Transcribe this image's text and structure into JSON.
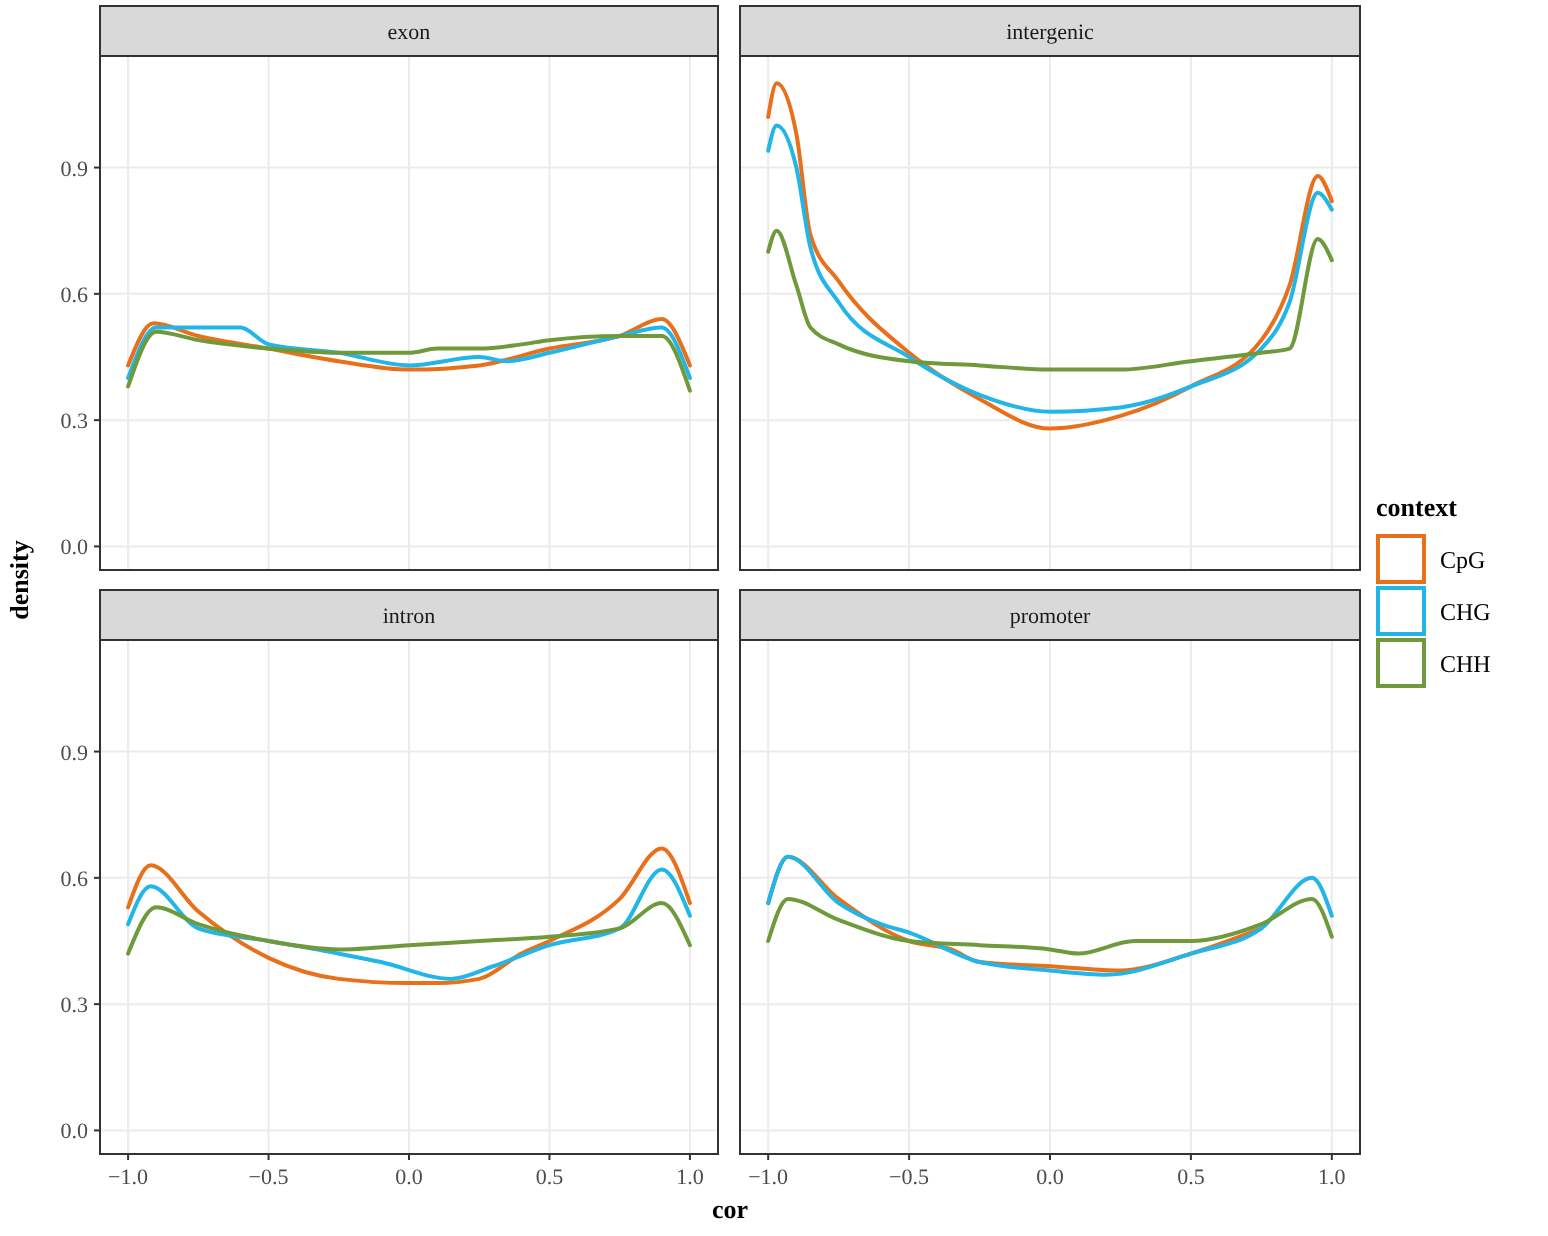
{
  "chart_data": [
    {
      "type": "line",
      "title": "exon",
      "xlabel": "cor",
      "ylabel": "density",
      "legend_title": "context",
      "legend": "right",
      "grid": true,
      "tick_labels": "y",
      "xlim": [
        -1.1,
        1.1
      ],
      "ylim": [
        -0.056,
        1.165
      ],
      "xticks": [
        -1,
        -0.5,
        0,
        0.5,
        1
      ],
      "yticks": [
        {
          "value": 0,
          "label": "0.0"
        },
        0.3,
        0.6,
        0.9
      ],
      "series": [
        {
          "name": "CpG",
          "color": "#e8701a",
          "x": [
            -1,
            -0.91,
            -0.75,
            -0.5,
            -0.25,
            0,
            0.25,
            0.5,
            0.75,
            0.9,
            1
          ],
          "values": [
            0.43,
            0.53,
            0.5,
            0.47,
            0.44,
            0.42,
            0.43,
            0.47,
            0.5,
            0.54,
            0.43
          ]
        },
        {
          "name": "CHG",
          "color": "#22b5e8",
          "x": [
            -1,
            -0.9,
            -0.75,
            -0.6,
            -0.5,
            -0.25,
            0,
            0.25,
            0.35,
            0.5,
            0.75,
            0.9,
            1
          ],
          "values": [
            0.4,
            0.52,
            0.52,
            0.52,
            0.48,
            0.46,
            0.43,
            0.45,
            0.44,
            0.46,
            0.5,
            0.52,
            0.4
          ]
        },
        {
          "name": "CHH",
          "color": "#6f9a3c",
          "x": [
            -1,
            -0.9,
            -0.75,
            -0.5,
            -0.25,
            0,
            0.1,
            0.25,
            0.4,
            0.5,
            0.75,
            0.9,
            1
          ],
          "values": [
            0.38,
            0.51,
            0.49,
            0.47,
            0.46,
            0.46,
            0.47,
            0.47,
            0.48,
            0.49,
            0.5,
            0.5,
            0.37
          ]
        }
      ]
    },
    {
      "type": "line",
      "title": "intergenic",
      "grid": true,
      "tick_labels": false,
      "xlim": [
        -1.1,
        1.1
      ],
      "ylim": [
        -0.056,
        1.165
      ],
      "xticks": [
        -1,
        -0.5,
        0,
        0.5,
        1
      ],
      "yticks": [
        0,
        0.3,
        0.6,
        0.9
      ],
      "series": [
        {
          "color": "#e8701a",
          "x": [
            -1,
            -0.97,
            -0.9,
            -0.85,
            -0.75,
            -0.5,
            -0.25,
            0,
            0.25,
            0.5,
            0.75,
            0.85,
            0.95,
            1
          ],
          "values": [
            1.02,
            1.1,
            0.98,
            0.74,
            0.63,
            0.46,
            0.35,
            0.28,
            0.31,
            0.38,
            0.49,
            0.62,
            0.88,
            0.82
          ]
        },
        {
          "color": "#22b5e8",
          "x": [
            -1,
            -0.97,
            -0.9,
            -0.85,
            -0.75,
            -0.5,
            -0.25,
            0,
            0.25,
            0.5,
            0.75,
            0.85,
            0.95,
            1
          ],
          "values": [
            0.94,
            1.0,
            0.9,
            0.71,
            0.58,
            0.45,
            0.36,
            0.32,
            0.33,
            0.38,
            0.47,
            0.58,
            0.84,
            0.8
          ]
        },
        {
          "color": "#6f9a3c",
          "x": [
            -1,
            -0.97,
            -0.9,
            -0.85,
            -0.75,
            -0.5,
            -0.25,
            0,
            0.25,
            0.5,
            0.75,
            0.85,
            0.95,
            1
          ],
          "values": [
            0.7,
            0.75,
            0.62,
            0.52,
            0.48,
            0.44,
            0.43,
            0.42,
            0.42,
            0.44,
            0.46,
            0.47,
            0.73,
            0.68
          ]
        }
      ]
    },
    {
      "type": "line",
      "title": "intron",
      "grid": true,
      "xlim": [
        -1.1,
        1.1
      ],
      "ylim": [
        -0.056,
        1.165
      ],
      "xticks": [
        {
          "value": -1,
          "label": "−1.0"
        },
        {
          "value": -0.5,
          "label": "−0.5"
        },
        {
          "value": 0,
          "label": "0.0"
        },
        0.5,
        {
          "value": 1,
          "label": "1.0"
        }
      ],
      "yticks": [
        {
          "value": 0,
          "label": "0.0"
        },
        0.3,
        0.6,
        0.9
      ],
      "series": [
        {
          "color": "#e8701a",
          "x": [
            -1,
            -0.92,
            -0.75,
            -0.5,
            -0.25,
            0,
            0.1,
            0.25,
            0.4,
            0.5,
            0.75,
            0.9,
            1
          ],
          "values": [
            0.53,
            0.63,
            0.52,
            0.41,
            0.36,
            0.35,
            0.35,
            0.36,
            0.42,
            0.45,
            0.55,
            0.67,
            0.54
          ]
        },
        {
          "color": "#22b5e8",
          "x": [
            -1,
            -0.92,
            -0.75,
            -0.5,
            -0.25,
            -0.1,
            0.15,
            0.3,
            0.5,
            0.75,
            0.9,
            1
          ],
          "values": [
            0.49,
            0.58,
            0.48,
            0.45,
            0.42,
            0.4,
            0.36,
            0.39,
            0.44,
            0.48,
            0.62,
            0.51
          ]
        },
        {
          "color": "#6f9a3c",
          "x": [
            -1,
            -0.9,
            -0.75,
            -0.5,
            -0.25,
            0,
            0.25,
            0.5,
            0.75,
            0.9,
            1
          ],
          "values": [
            0.42,
            0.53,
            0.49,
            0.45,
            0.43,
            0.44,
            0.45,
            0.46,
            0.48,
            0.54,
            0.44
          ]
        }
      ]
    },
    {
      "type": "line",
      "title": "promoter",
      "grid": true,
      "tick_labels": "x",
      "xlim": [
        -1.1,
        1.1
      ],
      "ylim": [
        -0.056,
        1.165
      ],
      "xticks": [
        {
          "value": -1,
          "label": "−1.0"
        },
        {
          "value": -0.5,
          "label": "−0.5"
        },
        {
          "value": 0,
          "label": "0.0"
        },
        0.5,
        {
          "value": 1,
          "label": "1.0"
        }
      ],
      "yticks": [
        0,
        0.3,
        0.6,
        0.9
      ],
      "series": [
        {
          "color": "#e8701a",
          "x": [
            -1,
            -0.93,
            -0.75,
            -0.5,
            -0.35,
            -0.25,
            0,
            0.25,
            0.5,
            0.75
          ],
          "values": [
            0.54,
            0.65,
            0.55,
            0.45,
            0.43,
            0.4,
            0.39,
            0.38,
            0.42,
            0.48
          ]
        },
        {
          "color": "#22b5e8",
          "x": [
            -1,
            -0.93,
            -0.75,
            -0.6,
            -0.5,
            -0.25,
            0,
            0.2,
            0.5,
            0.75,
            0.93,
            1
          ],
          "values": [
            0.54,
            0.65,
            0.54,
            0.49,
            0.47,
            0.4,
            0.38,
            0.37,
            0.42,
            0.48,
            0.6,
            0.51
          ]
        },
        {
          "color": "#6f9a3c",
          "x": [
            -1,
            -0.93,
            -0.75,
            -0.5,
            -0.25,
            0,
            0.1,
            0.3,
            0.5,
            0.75,
            0.93,
            1
          ],
          "values": [
            0.45,
            0.55,
            0.5,
            0.45,
            0.44,
            0.43,
            0.42,
            0.45,
            0.45,
            0.49,
            0.55,
            0.46
          ]
        }
      ]
    }
  ]
}
